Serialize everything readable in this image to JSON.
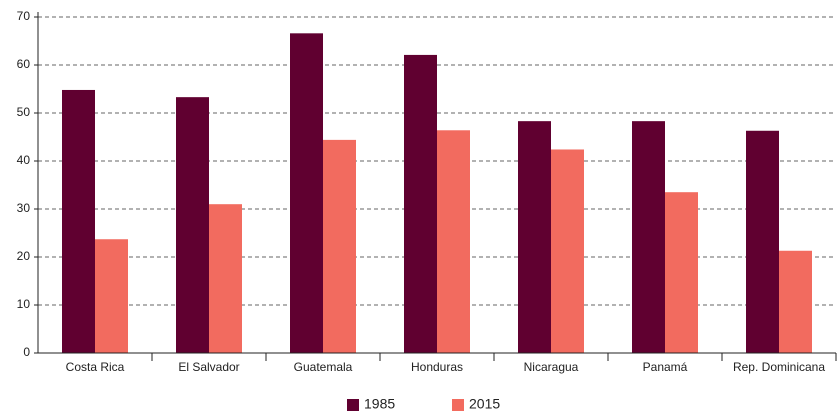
{
  "chart_data": {
    "type": "bar",
    "categories": [
      "Costa Rica",
      "El Salvador",
      "Guatemala",
      "Honduras",
      "Nicaragua",
      "Panamá",
      "Rep. Dominicana"
    ],
    "series": [
      {
        "name": "1985",
        "color": "#600030",
        "values": [
          54.8,
          53.3,
          66.6,
          62.1,
          48.3,
          48.3,
          46.3
        ]
      },
      {
        "name": "2015",
        "color": "#f26b5f",
        "values": [
          23.7,
          31.0,
          44.4,
          46.4,
          42.4,
          33.5,
          21.3
        ]
      }
    ],
    "ylim": [
      0,
      70
    ],
    "yticks": [
      0,
      10,
      20,
      30,
      40,
      50,
      60,
      70
    ],
    "grid": true,
    "legend": "bottom"
  }
}
